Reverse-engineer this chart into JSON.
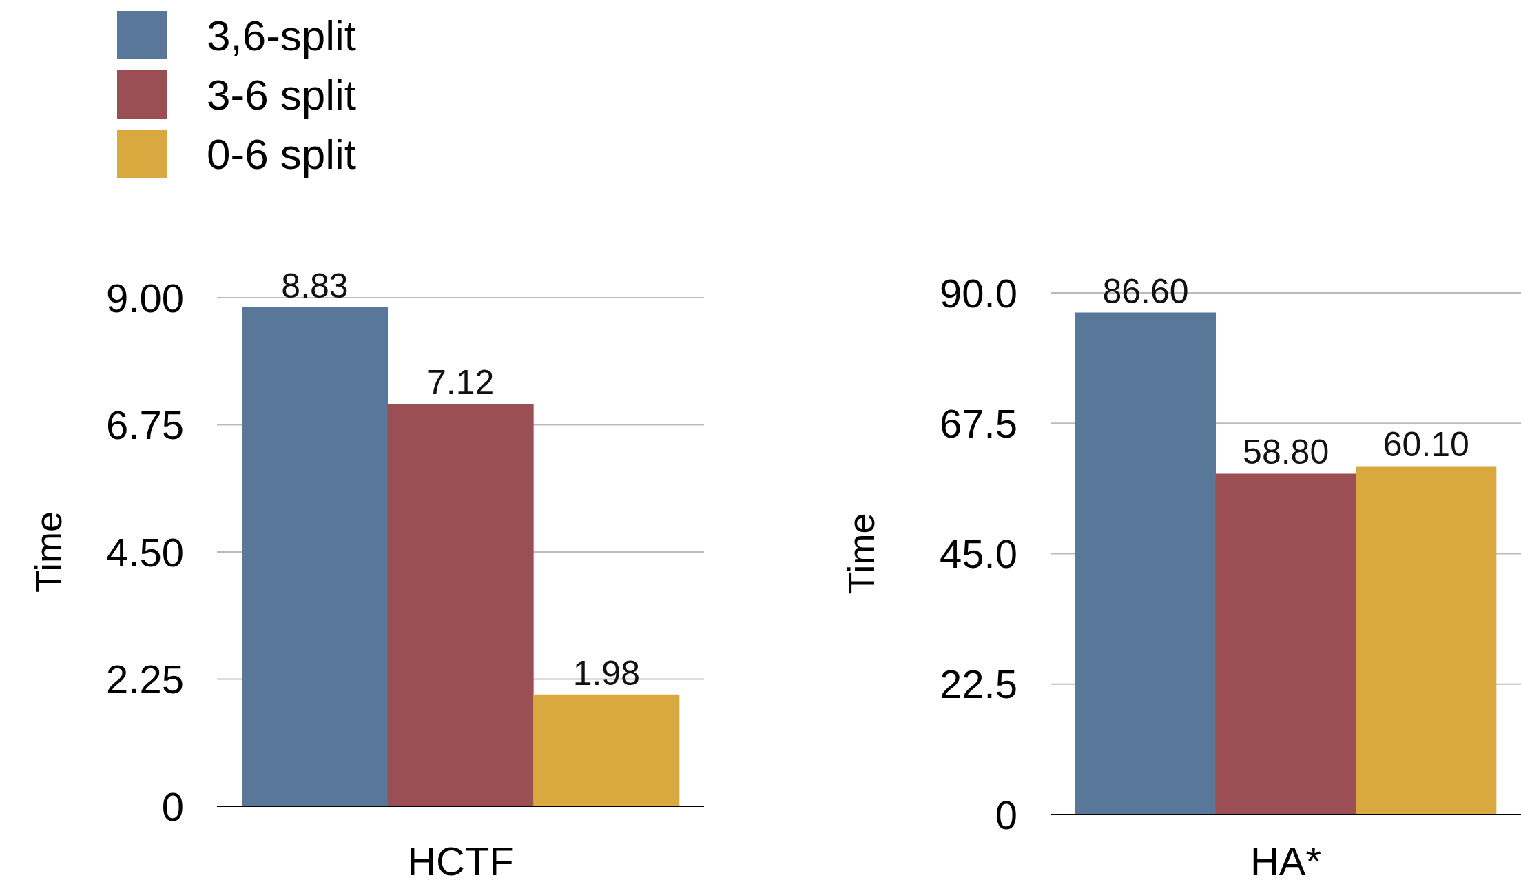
{
  "chart_data": [
    {
      "type": "bar",
      "ylabel": "Time",
      "xlabel": "HCTF",
      "categories": [
        null,
        null,
        null
      ],
      "ylim": [
        0,
        9
      ],
      "yticks": [
        0,
        2.25,
        {
          "value": 4.5,
          "label": "4.50"
        },
        6.75,
        {
          "value": 9,
          "label": "9.00"
        }
      ],
      "grid": "y",
      "legend": "top left",
      "series": [
        {
          "name": "3,6-split",
          "color": "#587799",
          "values": [
            8.83,
            null,
            null
          ],
          "value_labels": [
            "8.83",
            null,
            null
          ]
        },
        {
          "name": "3-6 split",
          "color": "#9b4f55",
          "values": [
            null,
            7.12,
            null
          ],
          "value_labels": [
            null,
            "7.12",
            null
          ]
        },
        {
          "name": "0-6 split",
          "color": "#d9a940",
          "values": [
            null,
            null,
            1.98
          ],
          "value_labels": [
            null,
            null,
            "1.98"
          ]
        }
      ]
    },
    {
      "type": "bar",
      "ylabel": "Time",
      "xlabel": "HA*",
      "categories": [
        null,
        null,
        null
      ],
      "ylim": [
        0,
        90
      ],
      "yticks": [
        0,
        22.5,
        {
          "value": 45,
          "label": "45.0"
        },
        67.5,
        {
          "value": 90,
          "label": "90.0"
        }
      ],
      "grid": "y",
      "series": [
        {
          "color": "#587799",
          "values": [
            86.6,
            null,
            null
          ],
          "value_labels": [
            "86.60",
            null,
            null
          ]
        },
        {
          "color": "#9b4f55",
          "values": [
            null,
            58.8,
            null
          ],
          "value_labels": [
            null,
            "58.80",
            null
          ]
        },
        {
          "color": "#d9a940",
          "values": [
            null,
            null,
            60.1
          ],
          "value_labels": [
            null,
            null,
            "60.10"
          ]
        }
      ]
    }
  ]
}
